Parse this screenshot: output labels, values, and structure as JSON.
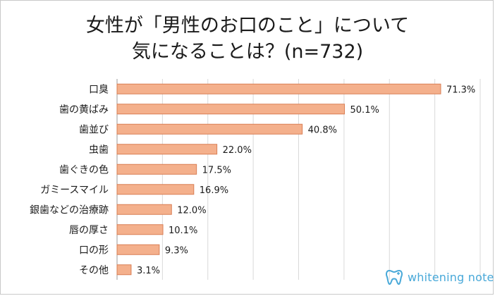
{
  "chart_data": {
    "type": "bar",
    "orientation": "horizontal",
    "title_lines": [
      "女性が「男性のお口のこと」について",
      "気になることは？(n=732)"
    ],
    "categories": [
      "口臭",
      "歯の黄ばみ",
      "歯並び",
      "虫歯",
      "歯ぐきの色",
      "ガミースマイル",
      "銀歯などの治療跡",
      "唇の厚さ",
      "口の形",
      "その他"
    ],
    "values": [
      71.3,
      50.1,
      40.8,
      22.0,
      17.5,
      16.9,
      12.0,
      10.1,
      9.3,
      3.1
    ],
    "value_labels": [
      "71.3%",
      "50.1%",
      "40.8%",
      "22.0%",
      "17.5%",
      "16.9%",
      "12.0%",
      "10.1%",
      "9.3%",
      "3.1%"
    ],
    "xlim": [
      0,
      80
    ],
    "grid": "vertical",
    "legend": "none",
    "colors": {
      "bar": "#f4b08c",
      "bar_edge": "#d97f55",
      "grid": "#d9d9d9"
    }
  },
  "brand": {
    "name": "whitening note",
    "color": "#49a9d9",
    "icon": "tooth-icon"
  }
}
